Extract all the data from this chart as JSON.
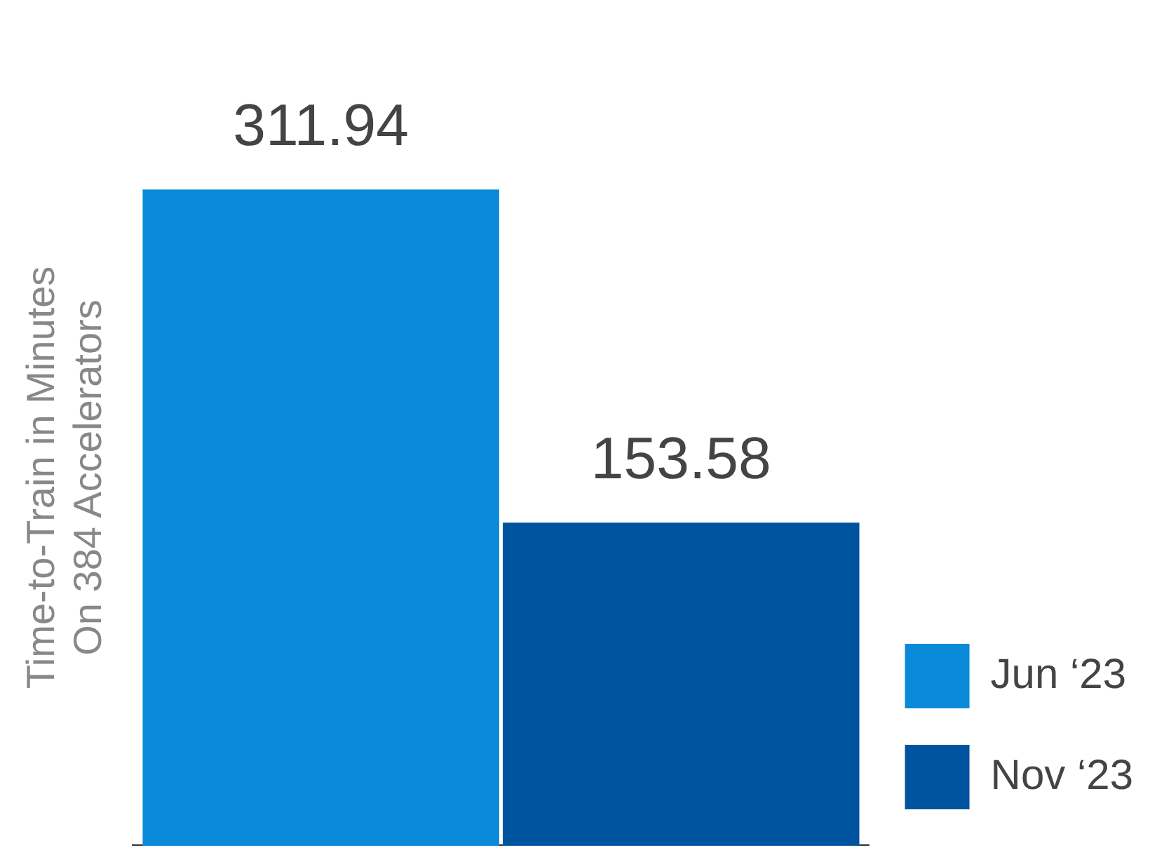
{
  "chart_data": {
    "type": "bar",
    "ylabel": "Time-to-Train in Minutes\nOn 384 Accelerators",
    "categories": [
      null
    ],
    "series": [
      {
        "name": "Jun ‘23",
        "color": "#0a8ad8",
        "values": [
          311.94
        ]
      },
      {
        "name": "Nov ‘23",
        "color": "#00539e",
        "values": [
          153.58
        ]
      }
    ],
    "data_labels": true,
    "legend": "bottom right",
    "grid": false
  }
}
